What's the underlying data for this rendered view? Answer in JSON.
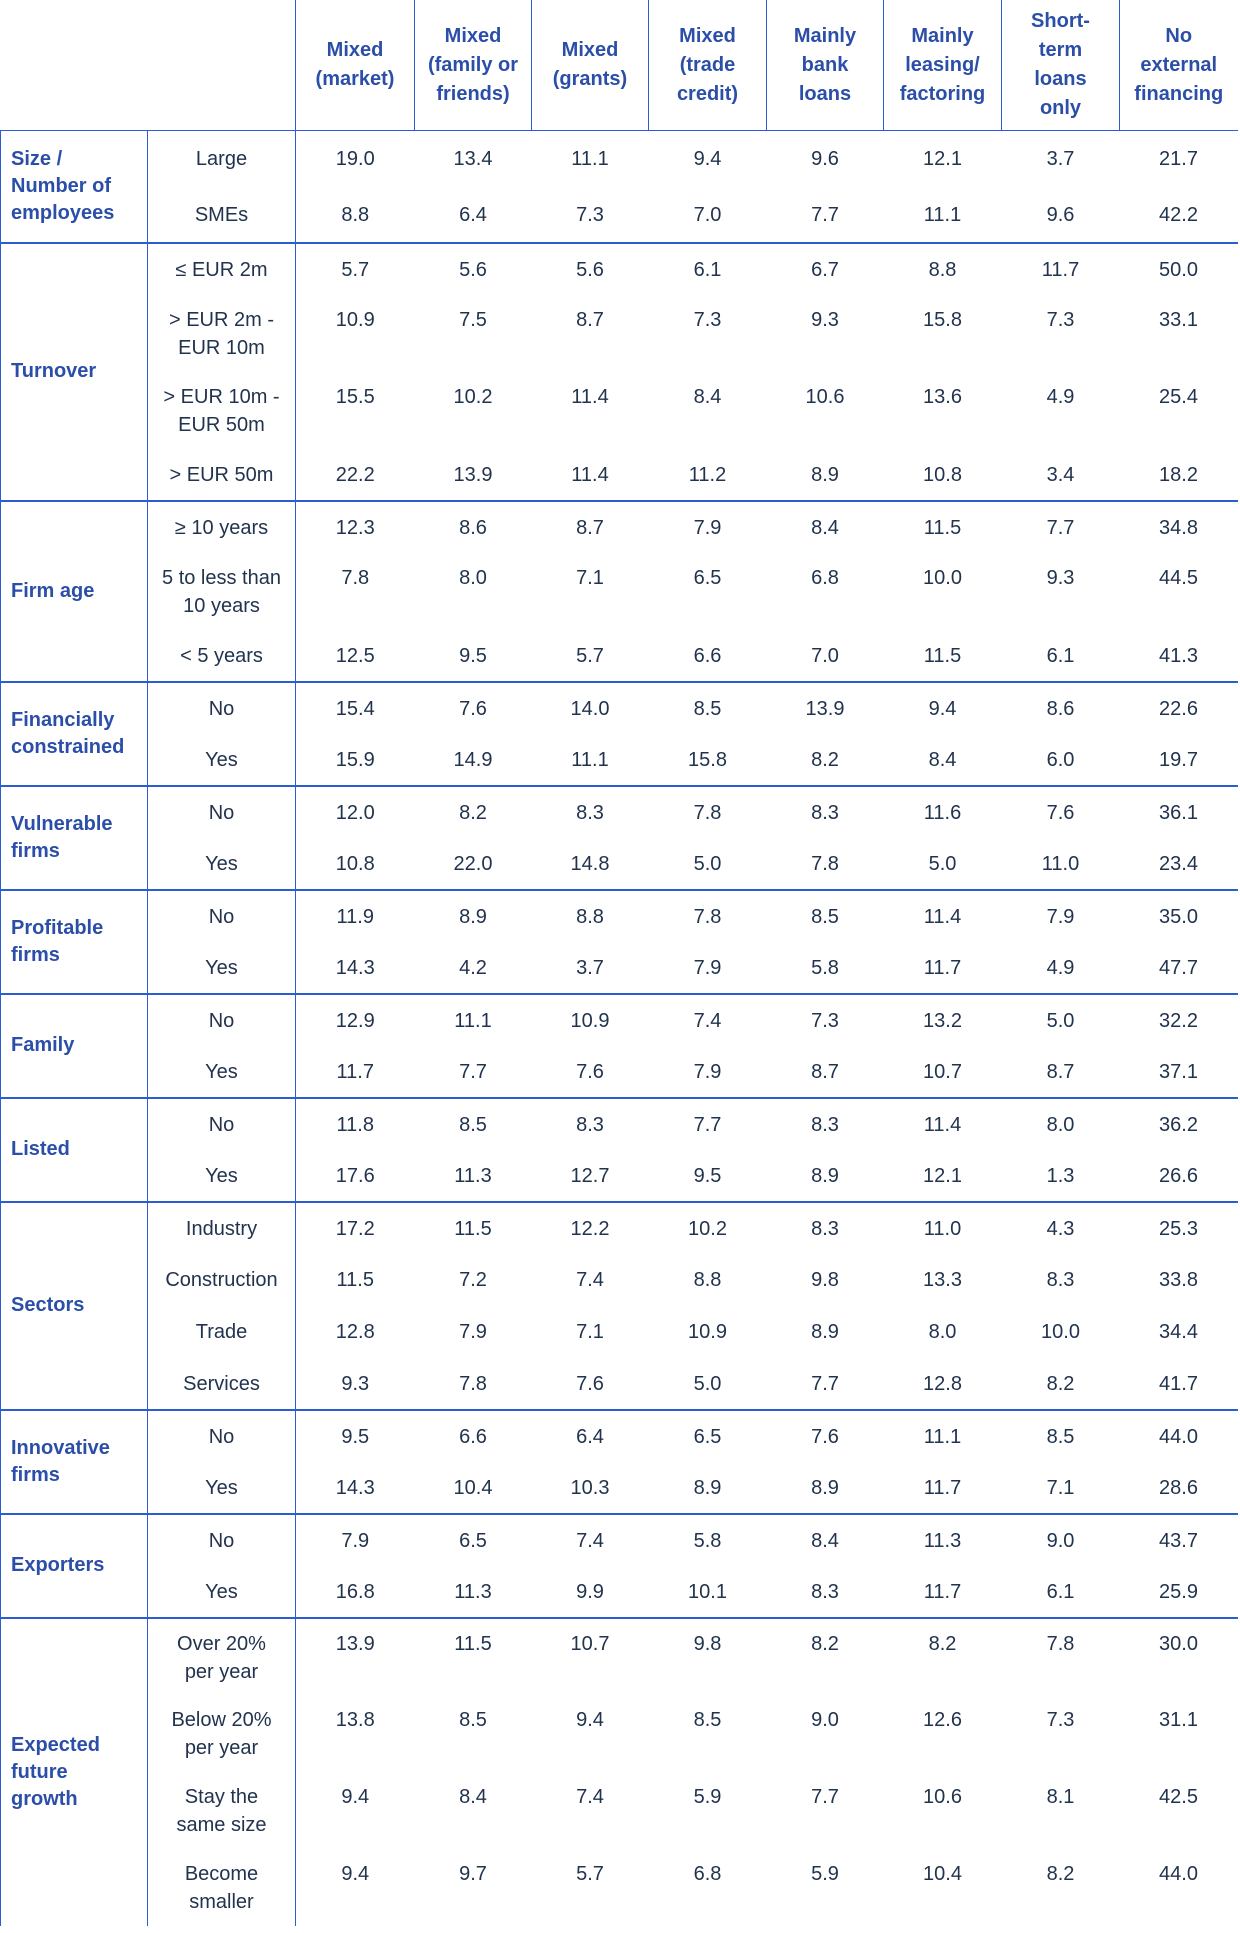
{
  "colors": {
    "category_text": "#2B4EA8",
    "value_text": "#22334E",
    "grid_line": "#2B5CD0",
    "background": "#FFFFFF"
  },
  "table": {
    "corner_label": "",
    "columns": [
      "Mixed\n(market)",
      "Mixed\n(family or\nfriends)",
      "Mixed\n(grants)",
      "Mixed\n(trade\ncredit)",
      "Mainly\nbank\nloans",
      "Mainly\nleasing/\nfactoring",
      "Short-\nterm\nloans\nonly",
      "No\nexternal\nfinancing"
    ],
    "groups": [
      {
        "label": "Size /\nNumber of\nemployees",
        "rows": [
          {
            "label": "Large",
            "values": [
              "19.0",
              "13.4",
              "11.1",
              "9.4",
              "9.6",
              "12.1",
              "3.7",
              "21.7"
            ]
          },
          {
            "label": "SMEs",
            "values": [
              "8.8",
              "6.4",
              "7.3",
              "7.0",
              "7.7",
              "11.1",
              "9.6",
              "42.2"
            ]
          }
        ]
      },
      {
        "label": "Turnover",
        "rows": [
          {
            "label": "≤ EUR 2m",
            "values": [
              "5.7",
              "5.6",
              "5.6",
              "6.1",
              "6.7",
              "8.8",
              "11.7",
              "50.0"
            ]
          },
          {
            "label": "> EUR 2m -\nEUR 10m",
            "values": [
              "10.9",
              "7.5",
              "8.7",
              "7.3",
              "9.3",
              "15.8",
              "7.3",
              "33.1"
            ]
          },
          {
            "label": "> EUR 10m -\nEUR 50m",
            "values": [
              "15.5",
              "10.2",
              "11.4",
              "8.4",
              "10.6",
              "13.6",
              "4.9",
              "25.4"
            ]
          },
          {
            "label": "> EUR 50m",
            "values": [
              "22.2",
              "13.9",
              "11.4",
              "11.2",
              "8.9",
              "10.8",
              "3.4",
              "18.2"
            ]
          }
        ]
      },
      {
        "label": "Firm age",
        "rows": [
          {
            "label": "≥ 10 years",
            "values": [
              "12.3",
              "8.6",
              "8.7",
              "7.9",
              "8.4",
              "11.5",
              "7.7",
              "34.8"
            ]
          },
          {
            "label": "5 to less than\n10 years",
            "values": [
              "7.8",
              "8.0",
              "7.1",
              "6.5",
              "6.8",
              "10.0",
              "9.3",
              "44.5"
            ]
          },
          {
            "label": "< 5 years",
            "values": [
              "12.5",
              "9.5",
              "5.7",
              "6.6",
              "7.0",
              "11.5",
              "6.1",
              "41.3"
            ]
          }
        ]
      },
      {
        "label": "Financially\nconstrained",
        "rows": [
          {
            "label": "No",
            "values": [
              "15.4",
              "7.6",
              "14.0",
              "8.5",
              "13.9",
              "9.4",
              "8.6",
              "22.6"
            ]
          },
          {
            "label": "Yes",
            "values": [
              "15.9",
              "14.9",
              "11.1",
              "15.8",
              "8.2",
              "8.4",
              "6.0",
              "19.7"
            ]
          }
        ]
      },
      {
        "label": "Vulnerable\nfirms",
        "rows": [
          {
            "label": "No",
            "values": [
              "12.0",
              "8.2",
              "8.3",
              "7.8",
              "8.3",
              "11.6",
              "7.6",
              "36.1"
            ]
          },
          {
            "label": "Yes",
            "values": [
              "10.8",
              "22.0",
              "14.8",
              "5.0",
              "7.8",
              "5.0",
              "11.0",
              "23.4"
            ]
          }
        ]
      },
      {
        "label": "Profitable\nfirms",
        "rows": [
          {
            "label": "No",
            "values": [
              "11.9",
              "8.9",
              "8.8",
              "7.8",
              "8.5",
              "11.4",
              "7.9",
              "35.0"
            ]
          },
          {
            "label": "Yes",
            "values": [
              "14.3",
              "4.2",
              "3.7",
              "7.9",
              "5.8",
              "11.7",
              "4.9",
              "47.7"
            ]
          }
        ]
      },
      {
        "label": "Family",
        "rows": [
          {
            "label": "No",
            "values": [
              "12.9",
              "11.1",
              "10.9",
              "7.4",
              "7.3",
              "13.2",
              "5.0",
              "32.2"
            ]
          },
          {
            "label": "Yes",
            "values": [
              "11.7",
              "7.7",
              "7.6",
              "7.9",
              "8.7",
              "10.7",
              "8.7",
              "37.1"
            ]
          }
        ]
      },
      {
        "label": "Listed",
        "rows": [
          {
            "label": "No",
            "values": [
              "11.8",
              "8.5",
              "8.3",
              "7.7",
              "8.3",
              "11.4",
              "8.0",
              "36.2"
            ]
          },
          {
            "label": "Yes",
            "values": [
              "17.6",
              "11.3",
              "12.7",
              "9.5",
              "8.9",
              "12.1",
              "1.3",
              "26.6"
            ]
          }
        ]
      },
      {
        "label": "Sectors",
        "rows": [
          {
            "label": "Industry",
            "values": [
              "17.2",
              "11.5",
              "12.2",
              "10.2",
              "8.3",
              "11.0",
              "4.3",
              "25.3"
            ]
          },
          {
            "label": "Construction",
            "values": [
              "11.5",
              "7.2",
              "7.4",
              "8.8",
              "9.8",
              "13.3",
              "8.3",
              "33.8"
            ]
          },
          {
            "label": "Trade",
            "values": [
              "12.8",
              "7.9",
              "7.1",
              "10.9",
              "8.9",
              "8.0",
              "10.0",
              "34.4"
            ]
          },
          {
            "label": "Services",
            "values": [
              "9.3",
              "7.8",
              "7.6",
              "5.0",
              "7.7",
              "12.8",
              "8.2",
              "41.7"
            ]
          }
        ]
      },
      {
        "label": "Innovative\nfirms",
        "rows": [
          {
            "label": "No",
            "values": [
              "9.5",
              "6.6",
              "6.4",
              "6.5",
              "7.6",
              "11.1",
              "8.5",
              "44.0"
            ]
          },
          {
            "label": "Yes",
            "values": [
              "14.3",
              "10.4",
              "10.3",
              "8.9",
              "8.9",
              "11.7",
              "7.1",
              "28.6"
            ]
          }
        ]
      },
      {
        "label": "Exporters",
        "rows": [
          {
            "label": "No",
            "values": [
              "7.9",
              "6.5",
              "7.4",
              "5.8",
              "8.4",
              "11.3",
              "9.0",
              "43.7"
            ]
          },
          {
            "label": "Yes",
            "values": [
              "16.8",
              "11.3",
              "9.9",
              "10.1",
              "8.3",
              "11.7",
              "6.1",
              "25.9"
            ]
          }
        ]
      },
      {
        "label": "Expected\nfuture\ngrowth",
        "rows": [
          {
            "label": "Over 20%\nper year",
            "values": [
              "13.9",
              "11.5",
              "10.7",
              "9.8",
              "8.2",
              "8.2",
              "7.8",
              "30.0"
            ]
          },
          {
            "label": "Below 20%\nper year",
            "values": [
              "13.8",
              "8.5",
              "9.4",
              "8.5",
              "9.0",
              "12.6",
              "7.3",
              "31.1"
            ]
          },
          {
            "label": "Stay the\nsame size",
            "values": [
              "9.4",
              "8.4",
              "7.4",
              "5.9",
              "7.7",
              "10.6",
              "8.1",
              "42.5"
            ]
          },
          {
            "label": "Become\nsmaller",
            "values": [
              "9.4",
              "9.7",
              "5.7",
              "6.8",
              "5.9",
              "10.4",
              "8.2",
              "44.0"
            ]
          }
        ]
      }
    ]
  }
}
